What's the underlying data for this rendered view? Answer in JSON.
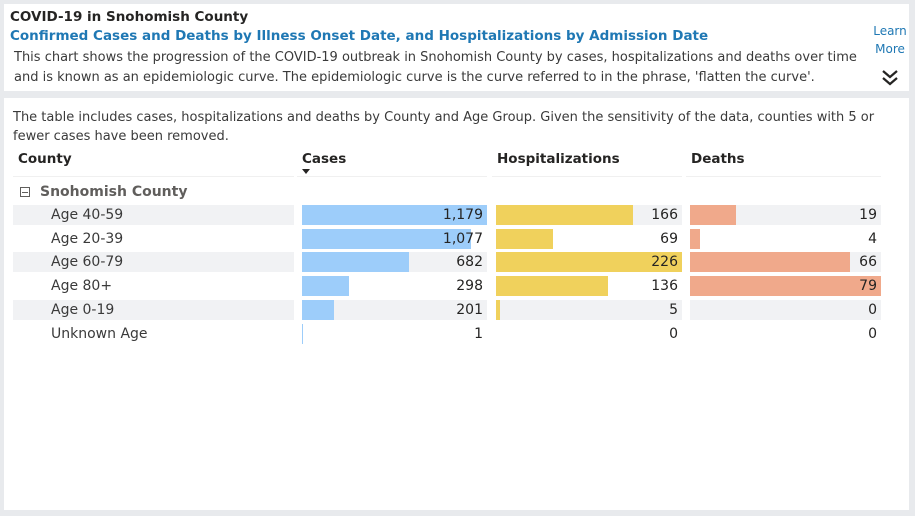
{
  "header": {
    "title": "COVID-19 in Snohomish County",
    "subtitle": "Confirmed Cases and Deaths by Illness Onset Date, and Hospitalizations by Admission Date",
    "description": "This chart shows the progression of the COVID-19 outbreak in Snohomish County by cases, hospitalizations and deaths over time and is known as an epidemiologic curve. The epidemiologic curve is the curve referred to in the phrase, 'flatten the curve'.",
    "learn_more_line1": "Learn",
    "learn_more_line2": "More",
    "chevron_icon": "double-chevron-down-icon"
  },
  "table": {
    "note": "The table includes cases, hospitalizations and deaths by County and Age Group. Given the sensitivity of the data, counties with 5 or fewer cases have been removed.",
    "columns": {
      "county": "County",
      "cases": "Cases",
      "hospitalizations": "Hospitalizations",
      "deaths": "Deaths"
    },
    "sort_column": "cases",
    "group": "Snohomish County",
    "colors": {
      "cases": "#9dcdfa",
      "hospitalizations": "#f0d15c",
      "deaths": "#f0a98b"
    },
    "rows": [
      {
        "label": "Age 40-59",
        "cases": 1179,
        "cases_display": "1,179",
        "hospitalizations": 166,
        "hosp_display": "166",
        "deaths": 19,
        "deaths_display": "19"
      },
      {
        "label": "Age 20-39",
        "cases": 1077,
        "cases_display": "1,077",
        "hospitalizations": 69,
        "hosp_display": "69",
        "deaths": 4,
        "deaths_display": "4"
      },
      {
        "label": "Age 60-79",
        "cases": 682,
        "cases_display": "682",
        "hospitalizations": 226,
        "hosp_display": "226",
        "deaths": 66,
        "deaths_display": "66"
      },
      {
        "label": "Age 80+",
        "cases": 298,
        "cases_display": "298",
        "hospitalizations": 136,
        "hosp_display": "136",
        "deaths": 79,
        "deaths_display": "79"
      },
      {
        "label": "Age 0-19",
        "cases": 201,
        "cases_display": "201",
        "hospitalizations": 5,
        "hosp_display": "5",
        "deaths": 0,
        "deaths_display": "0"
      },
      {
        "label": "Unknown Age",
        "cases": 1,
        "cases_display": "1",
        "hospitalizations": 0,
        "hosp_display": "0",
        "deaths": 0,
        "deaths_display": "0"
      }
    ]
  }
}
